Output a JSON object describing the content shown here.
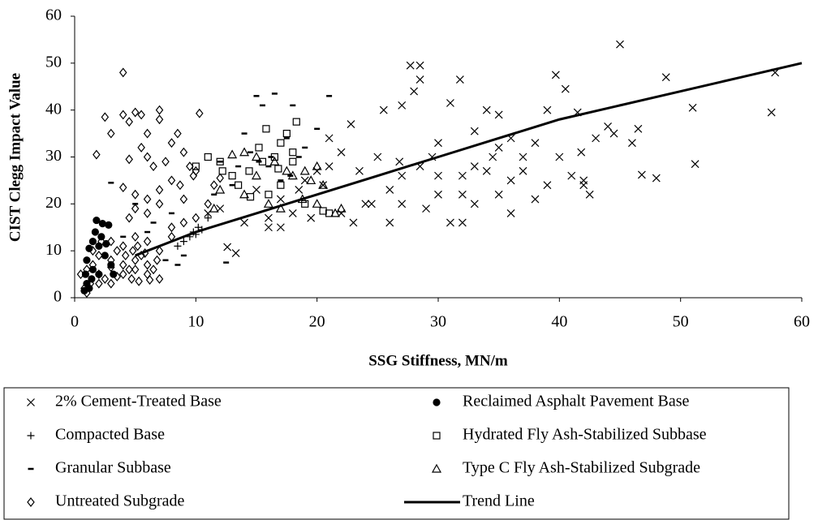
{
  "chart_data": {
    "type": "scatter",
    "xlabel": "SSG Stiffness, MN/m",
    "ylabel": "CIST Clegg Impact Value",
    "xlim": [
      0,
      60
    ],
    "xticks": [
      0,
      10,
      20,
      30,
      40,
      50,
      60
    ],
    "ylim": [
      0,
      60
    ],
    "yticks": [
      0,
      10,
      20,
      30,
      40,
      50,
      60
    ],
    "grid": false,
    "series": [
      {
        "name": "2% Cement-Treated Base",
        "marker": "x",
        "color": "#000000",
        "x": [
          45,
          57.8,
          57.5,
          51,
          51.2,
          48.8,
          48,
          46.5,
          46,
          44.5,
          44,
          46.8,
          42,
          42.5,
          41.8,
          41.5,
          40.5,
          39.7,
          39,
          38,
          37,
          36,
          35,
          34,
          34.5,
          33,
          33,
          32,
          32,
          31.8,
          31,
          30,
          30,
          29.5,
          28.5,
          28,
          27.7,
          28.5,
          27,
          26.8,
          26,
          25.5,
          25,
          24,
          23.5,
          23,
          22.8,
          22,
          21,
          20.5,
          20,
          19.5,
          19,
          18,
          17,
          16,
          15,
          14,
          13.3,
          12.6,
          12,
          11,
          26,
          27,
          28.5,
          30,
          32,
          34,
          36,
          38,
          40,
          39,
          37,
          35,
          33,
          31,
          29,
          27,
          24.5,
          22,
          21,
          18.5,
          17,
          16,
          35,
          36,
          42,
          41,
          43
        ],
        "values": [
          54,
          48,
          39.5,
          40.5,
          28.5,
          47,
          25.5,
          36,
          33,
          35,
          36.5,
          26.2,
          24,
          22,
          31,
          39.5,
          44.5,
          47.5,
          40,
          33,
          27,
          25,
          22,
          40,
          30,
          35.5,
          28,
          16,
          22,
          46.5,
          41.5,
          33,
          26,
          30,
          49.5,
          44,
          49.5,
          46.5,
          41,
          29,
          23,
          40,
          30,
          20,
          27,
          16,
          37,
          31,
          34,
          24,
          27,
          17,
          25,
          18,
          21,
          15,
          23,
          16,
          9.5,
          10.8,
          19,
          18,
          16,
          26,
          28,
          22,
          26,
          27,
          18,
          21,
          30,
          24,
          30,
          32,
          20,
          16,
          19,
          20,
          20,
          18,
          28,
          23,
          15,
          17,
          39,
          34,
          25,
          26,
          34
        ]
      },
      {
        "name": "Reclaimed Asphalt Pavement Base",
        "marker": "circle",
        "color": "#000000",
        "x": [
          1.8,
          2.3,
          2.8,
          1.2,
          1.5,
          2,
          1,
          1.5,
          2,
          1,
          1.2,
          0.8,
          2.5,
          3,
          2.2,
          1.7,
          0.9,
          2.6,
          1.4,
          3.2
        ],
        "values": [
          16.5,
          15.8,
          15.5,
          10.5,
          12,
          11,
          8,
          6,
          5,
          3,
          2,
          1.5,
          9,
          7,
          13,
          14,
          5,
          11.5,
          4,
          5
        ]
      },
      {
        "name": "Compacted Base",
        "marker": "plus",
        "color": "#000000",
        "x": [
          9.5,
          9.8,
          10.2,
          10,
          9,
          8.5,
          10.5,
          11
        ],
        "values": [
          13,
          14,
          15,
          13.5,
          12,
          11,
          14.5,
          17
        ]
      },
      {
        "name": "Hydrated Fly Ash-Stabilized Subbase",
        "marker": "square",
        "color": "#000000",
        "x": [
          11,
          12,
          12.2,
          13,
          14.4,
          14.5,
          15.2,
          15.5,
          15.8,
          16.5,
          17,
          17.5,
          18,
          18.3,
          18,
          17,
          16,
          20.5,
          21,
          13.5,
          10,
          16.8,
          19
        ],
        "values": [
          30,
          29,
          27,
          26,
          27,
          21.5,
          32,
          29,
          36,
          30,
          33,
          35,
          31,
          37.5,
          29,
          24,
          22,
          18.5,
          18,
          24,
          28,
          27.5,
          20
        ]
      },
      {
        "name": "Granular Subbase",
        "marker": "dash",
        "color": "#000000",
        "x": [
          6,
          7.5,
          8.5,
          9,
          12.5,
          13,
          14,
          15,
          15.5,
          16.5,
          17.5,
          18,
          18.5,
          19,
          17,
          16,
          13.5,
          14.5,
          15.2,
          3,
          4,
          8,
          5,
          6.5,
          20,
          21,
          12,
          11.5,
          16.2,
          17.8
        ],
        "values": [
          14,
          8,
          7,
          9,
          7.5,
          24,
          35,
          43,
          41,
          43.5,
          34,
          41,
          30,
          32,
          25,
          28,
          28,
          31,
          29,
          24.5,
          13,
          18,
          20,
          16,
          36,
          43,
          29,
          22,
          30,
          26
        ]
      },
      {
        "name": "Type C Fly Ash-Stabilized Subgrade",
        "marker": "triangle",
        "color": "#000000",
        "x": [
          13,
          14,
          15,
          16.5,
          17.5,
          18,
          19.5,
          20,
          20.5,
          21.5,
          20,
          11.5,
          12,
          14,
          16,
          15,
          17,
          18.8,
          22,
          19
        ],
        "values": [
          30.5,
          31,
          30,
          29,
          27,
          26,
          25,
          28,
          24,
          18,
          20,
          19,
          23,
          22,
          20,
          26,
          19,
          21,
          19,
          27
        ]
      },
      {
        "name": "Untreated Subgrade",
        "marker": "diamond",
        "color": "#000000",
        "x": [
          4,
          2.5,
          3,
          4,
          4.5,
          5,
          5.5,
          6,
          7,
          7,
          10.3,
          1.8,
          4.5,
          5.5,
          6,
          6.5,
          7.5,
          8,
          8.5,
          9,
          9.5,
          10,
          4,
          5,
          6,
          7,
          8,
          9,
          4.5,
          5,
          6,
          7,
          8,
          3,
          4,
          5,
          6,
          7,
          2,
          3,
          4,
          5,
          6,
          7,
          1,
          1.5,
          2,
          2.5,
          3,
          3.5,
          4,
          4.5,
          5,
          5.5,
          6,
          6.5,
          0.5,
          0.8,
          1,
          1.3,
          2,
          3.5,
          4.2,
          4.8,
          5.2,
          5.8,
          6.8,
          8,
          9,
          10,
          11,
          3,
          2.2,
          1.5,
          4.7,
          5.3,
          6.2,
          8.7,
          9.8,
          11.5,
          12
        ],
        "values": [
          48,
          38.5,
          35,
          39,
          37.5,
          39.5,
          39,
          35,
          40,
          38,
          39.3,
          30.5,
          29.5,
          32,
          30,
          28,
          29,
          33,
          35,
          31,
          28,
          27,
          23.5,
          22,
          21,
          23,
          25,
          21,
          17,
          19,
          18,
          20,
          15,
          12,
          11,
          13,
          12,
          10,
          9,
          8,
          7,
          6,
          5,
          4,
          6,
          7,
          5,
          4,
          3,
          4.5,
          5,
          6,
          8,
          9,
          7,
          6,
          5,
          2,
          1,
          3,
          3,
          10,
          9,
          10,
          11,
          9.5,
          8,
          13,
          16,
          17,
          20,
          6.5,
          12,
          10,
          4,
          3.5,
          3.8,
          24,
          26,
          24,
          25.5
        ]
      },
      {
        "name": "Trend Line",
        "marker": "line",
        "color": "#000000",
        "x": [
          5,
          10,
          15,
          20,
          25,
          30,
          35,
          40,
          45,
          50,
          55,
          60
        ],
        "values": [
          9,
          14,
          18,
          22,
          26,
          30,
          34,
          38,
          41,
          44,
          47,
          50
        ]
      }
    ]
  }
}
